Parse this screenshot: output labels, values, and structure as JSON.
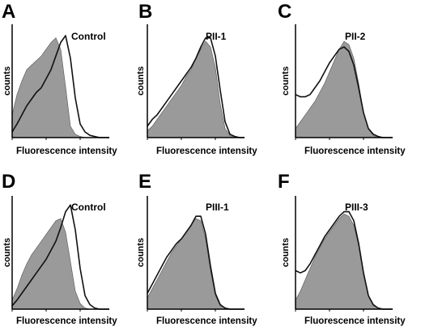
{
  "figure": {
    "background": "#ffffff",
    "fill_color": "#9a9a9a",
    "line_color": "#111111"
  },
  "chart_data": [
    {
      "type": "area",
      "panel": "A",
      "title": "Control",
      "xlabel": "Fluorescence intensity",
      "ylabel": "counts",
      "xlim": [
        0,
        100
      ],
      "ylim": [
        0,
        100
      ],
      "grid": false,
      "series": [
        {
          "style": "filled-gray",
          "x": [
            0,
            5,
            10,
            15,
            20,
            25,
            30,
            35,
            40,
            45,
            50,
            55,
            60,
            65,
            70,
            75,
            80,
            85,
            90,
            95,
            100
          ],
          "values": [
            20,
            38,
            50,
            60,
            64,
            68,
            72,
            78,
            84,
            88,
            78,
            45,
            10,
            3,
            1,
            0,
            0,
            0,
            0,
            0,
            0
          ]
        },
        {
          "style": "open-outline",
          "x": [
            0,
            5,
            10,
            15,
            20,
            25,
            30,
            35,
            40,
            45,
            50,
            55,
            60,
            65,
            70,
            75,
            80,
            85,
            90,
            95,
            100
          ],
          "values": [
            5,
            12,
            20,
            28,
            34,
            40,
            44,
            52,
            60,
            72,
            84,
            90,
            70,
            35,
            12,
            5,
            2,
            1,
            0,
            0,
            0
          ]
        }
      ]
    },
    {
      "type": "area",
      "panel": "B",
      "title": "PII-1",
      "xlabel": "Fluorescence intensity",
      "ylabel": "counts",
      "xlim": [
        0,
        100
      ],
      "ylim": [
        0,
        100
      ],
      "grid": false,
      "series": [
        {
          "style": "filled-gray",
          "x": [
            0,
            5,
            10,
            15,
            20,
            25,
            30,
            35,
            40,
            45,
            50,
            55,
            60,
            65,
            70,
            75,
            80,
            85,
            90,
            95,
            100
          ],
          "values": [
            6,
            10,
            16,
            22,
            28,
            34,
            40,
            46,
            54,
            60,
            70,
            78,
            85,
            80,
            62,
            30,
            8,
            2,
            0,
            0,
            0
          ]
        },
        {
          "style": "open-outline",
          "x": [
            0,
            5,
            10,
            15,
            20,
            25,
            30,
            35,
            40,
            45,
            50,
            55,
            60,
            65,
            70,
            75,
            80,
            85,
            90,
            95,
            100
          ],
          "values": [
            10,
            16,
            20,
            26,
            32,
            38,
            44,
            50,
            56,
            62,
            70,
            80,
            88,
            88,
            72,
            42,
            14,
            3,
            1,
            0,
            0
          ]
        }
      ]
    },
    {
      "type": "area",
      "panel": "C",
      "title": "PII-2",
      "xlabel": "Fluorescence intensity",
      "ylabel": "counts",
      "xlim": [
        0,
        100
      ],
      "ylim": [
        0,
        100
      ],
      "grid": false,
      "series": [
        {
          "style": "filled-gray",
          "x": [
            0,
            5,
            10,
            15,
            20,
            25,
            30,
            35,
            40,
            45,
            50,
            55,
            60,
            65,
            70,
            75,
            80,
            85,
            90,
            95,
            100
          ],
          "values": [
            8,
            14,
            20,
            26,
            32,
            40,
            48,
            58,
            68,
            78,
            85,
            82,
            70,
            48,
            22,
            8,
            2,
            0,
            0,
            0,
            0
          ]
        },
        {
          "style": "open-outline",
          "x": [
            0,
            5,
            10,
            15,
            20,
            25,
            30,
            35,
            40,
            45,
            50,
            55,
            60,
            65,
            70,
            75,
            80,
            85,
            90,
            95,
            100
          ],
          "values": [
            38,
            36,
            36,
            38,
            44,
            50,
            58,
            66,
            72,
            78,
            80,
            76,
            64,
            44,
            22,
            8,
            3,
            1,
            0,
            0,
            0
          ]
        }
      ]
    },
    {
      "type": "area",
      "panel": "D",
      "title": "Control",
      "xlabel": "Fluorescence intensity",
      "ylabel": "counts",
      "xlim": [
        0,
        100
      ],
      "ylim": [
        0,
        100
      ],
      "grid": false,
      "series": [
        {
          "style": "filled-gray",
          "x": [
            0,
            5,
            10,
            15,
            20,
            25,
            30,
            35,
            40,
            45,
            50,
            55,
            60,
            65,
            70,
            75,
            80,
            85,
            90,
            95,
            100
          ],
          "values": [
            8,
            18,
            30,
            40,
            48,
            54,
            60,
            66,
            72,
            78,
            80,
            68,
            42,
            16,
            5,
            1,
            0,
            0,
            0,
            0,
            0
          ]
        },
        {
          "style": "open-outline",
          "x": [
            0,
            5,
            10,
            15,
            20,
            25,
            30,
            35,
            40,
            45,
            50,
            55,
            60,
            65,
            70,
            75,
            80,
            85,
            90,
            95,
            100
          ],
          "values": [
            3,
            8,
            14,
            20,
            26,
            32,
            38,
            44,
            52,
            60,
            72,
            86,
            92,
            70,
            36,
            12,
            4,
            1,
            0,
            0,
            0
          ]
        }
      ]
    },
    {
      "type": "area",
      "panel": "E",
      "title": "PIII-1",
      "xlabel": "Fluorescence intensity",
      "ylabel": "counts",
      "xlim": [
        0,
        100
      ],
      "ylim": [
        0,
        100
      ],
      "grid": false,
      "series": [
        {
          "style": "filled-gray",
          "x": [
            0,
            5,
            10,
            15,
            20,
            25,
            30,
            35,
            40,
            45,
            50,
            55,
            60,
            65,
            70,
            75,
            80,
            85,
            90,
            95,
            100
          ],
          "values": [
            10,
            18,
            26,
            34,
            42,
            50,
            56,
            62,
            68,
            74,
            80,
            78,
            62,
            34,
            12,
            3,
            1,
            0,
            0,
            0,
            0
          ]
        },
        {
          "style": "open-outline",
          "x": [
            0,
            5,
            10,
            15,
            20,
            25,
            30,
            35,
            40,
            45,
            50,
            55,
            60,
            65,
            70,
            75,
            80,
            85,
            90,
            95,
            100
          ],
          "values": [
            14,
            22,
            30,
            38,
            46,
            52,
            58,
            62,
            68,
            74,
            82,
            82,
            66,
            38,
            14,
            4,
            1,
            0,
            0,
            0,
            0
          ]
        }
      ]
    },
    {
      "type": "area",
      "panel": "F",
      "title": "PIII-3",
      "xlabel": "Fluorescence intensity",
      "ylabel": "counts",
      "xlim": [
        0,
        100
      ],
      "ylim": [
        0,
        100
      ],
      "grid": false,
      "series": [
        {
          "style": "filled-gray",
          "x": [
            0,
            5,
            10,
            15,
            20,
            25,
            30,
            35,
            40,
            45,
            50,
            55,
            60,
            65,
            70,
            75,
            80,
            85,
            90,
            95,
            100
          ],
          "values": [
            8,
            16,
            26,
            36,
            46,
            54,
            62,
            68,
            74,
            80,
            84,
            82,
            74,
            56,
            30,
            12,
            3,
            1,
            0,
            0,
            0
          ]
        },
        {
          "style": "open-outline",
          "x": [
            0,
            5,
            10,
            15,
            20,
            25,
            30,
            35,
            40,
            45,
            50,
            55,
            60,
            65,
            70,
            75,
            80,
            85,
            90,
            95,
            100
          ],
          "values": [
            34,
            32,
            34,
            40,
            48,
            56,
            64,
            70,
            76,
            82,
            86,
            86,
            78,
            58,
            32,
            12,
            4,
            1,
            0,
            0,
            0
          ]
        }
      ]
    }
  ]
}
